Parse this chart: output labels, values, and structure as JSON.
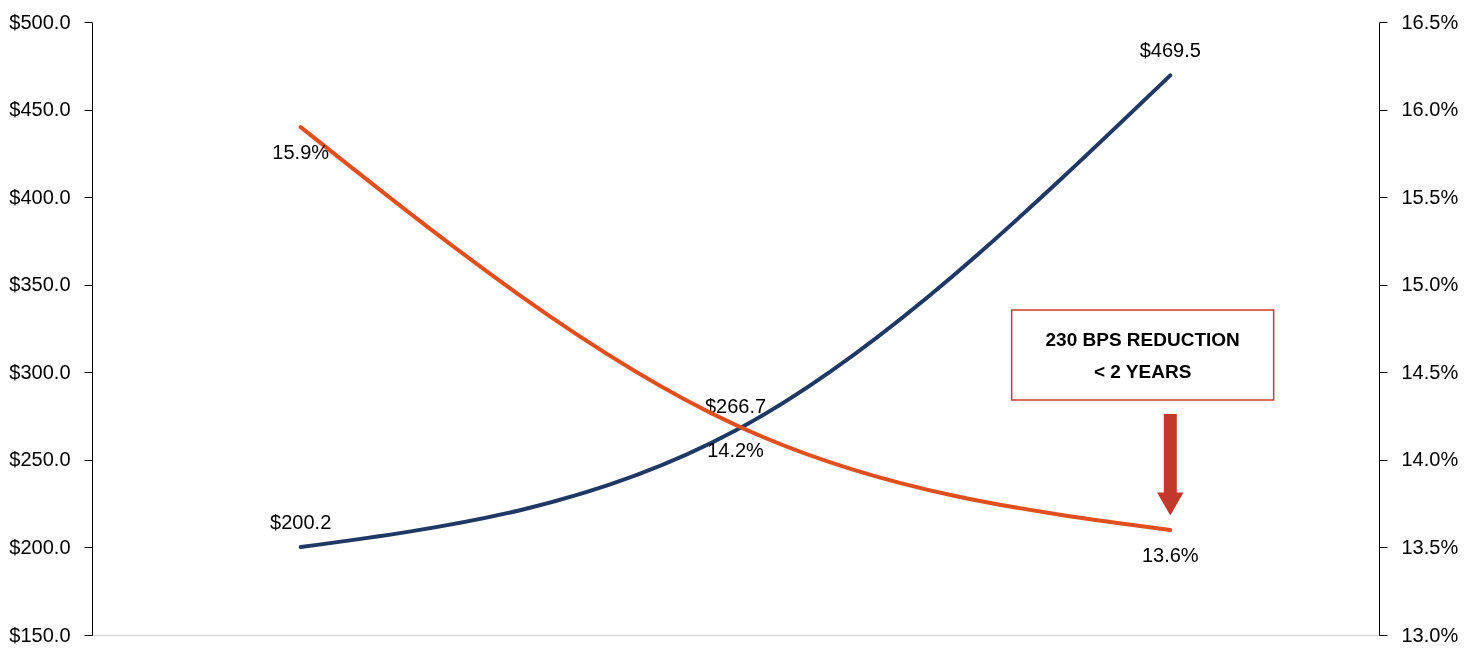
{
  "chart_data": {
    "type": "line",
    "categories": [
      null,
      null,
      null
    ],
    "series": [
      {
        "color": "#1f3864",
        "values": [
          200.2,
          266.7,
          469.5
        ],
        "value_labels": [
          "$200.2",
          "$266.7",
          "$469.5"
        ]
      },
      {
        "color": "#e0501f",
        "axis": "y2",
        "values": [
          15.9,
          14.2,
          13.6
        ],
        "value_labels": [
          "15.9%",
          "14.2%",
          "13.6%"
        ]
      }
    ],
    "ylim": [
      150,
      500
    ],
    "yticks": [
      {
        "value": 150,
        "label": "$150.0"
      },
      {
        "value": 200,
        "label": "$200.0"
      },
      {
        "value": 250,
        "label": "$250.0"
      },
      {
        "value": 300,
        "label": "$300.0"
      },
      {
        "value": 350,
        "label": "$350.0"
      },
      {
        "value": 400,
        "label": "$400.0"
      },
      {
        "value": 450,
        "label": "$450.0"
      },
      {
        "value": 500,
        "label": "$500.0"
      }
    ],
    "y2lim": [
      13.0,
      16.5
    ],
    "y2ticks": [
      {
        "value": 13.0,
        "label": "13.0%"
      },
      {
        "value": 13.5,
        "label": "13.5%"
      },
      {
        "value": 14.0,
        "label": "14.0%"
      },
      {
        "value": 14.5,
        "label": "14.5%"
      },
      {
        "value": 15.0,
        "label": "15.0%"
      },
      {
        "value": 15.5,
        "label": "15.5%"
      },
      {
        "value": 16.0,
        "label": "16.0%"
      },
      {
        "value": 16.5,
        "label": "16.5%"
      }
    ],
    "annotations": [
      "230 BPS REDUCTION",
      "< 2 YEARS"
    ],
    "marker": "none",
    "line_style": "solid"
  }
}
